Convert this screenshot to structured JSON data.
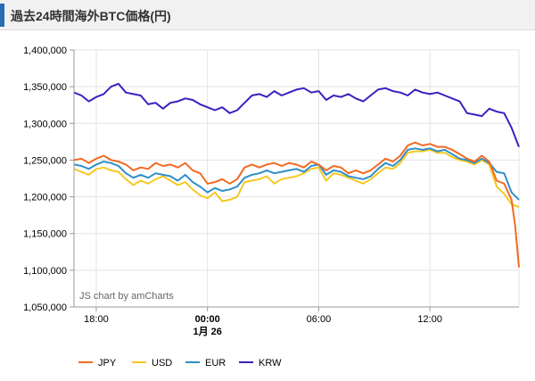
{
  "header": {
    "title": "過去24時間海外BTC価格(円)"
  },
  "credit": "JS chart by amCharts",
  "colors": {
    "JPY": "#f26a21",
    "USD": "#f5c823",
    "EUR": "#2e8fc7",
    "KRW": "#3b1fbf",
    "grid": "#e3e3e3",
    "axis": "#000000"
  },
  "chart_data": {
    "type": "line",
    "title": "過去24時間海外BTC価格(円)",
    "xlabel": "",
    "ylabel": "",
    "ylim": [
      1050000,
      1400000
    ],
    "y_ticks": [
      1050000,
      1100000,
      1150000,
      1200000,
      1250000,
      1300000,
      1350000,
      1400000
    ],
    "y_tick_labels": [
      "1,050,000",
      "1,100,000",
      "1,150,000",
      "1,200,000",
      "1,250,000",
      "1,300,000",
      "1,350,000",
      "1,400,000"
    ],
    "x_range_hours": [
      -7.2,
      16.8
    ],
    "x_ticks": [
      {
        "hour": -6,
        "label": "18:00",
        "sublabel": ""
      },
      {
        "hour": 0,
        "label": "00:00",
        "sublabel": "1月 26",
        "bold": true
      },
      {
        "hour": 6,
        "label": "06:00",
        "sublabel": ""
      },
      {
        "hour": 12,
        "label": "12:00",
        "sublabel": ""
      }
    ],
    "grid": true,
    "legend_position": "bottom-left",
    "series": [
      {
        "name": "JPY",
        "x": [
          -7.2,
          -6.8,
          -6.4,
          -6,
          -5.6,
          -5.2,
          -4.8,
          -4.4,
          -4,
          -3.6,
          -3.2,
          -2.8,
          -2.4,
          -2,
          -1.6,
          -1.2,
          -0.8,
          -0.4,
          0,
          0.4,
          0.8,
          1.2,
          1.6,
          2,
          2.4,
          2.8,
          3.2,
          3.6,
          4,
          4.4,
          4.8,
          5.2,
          5.6,
          6,
          6.4,
          6.8,
          7.2,
          7.6,
          8,
          8.4,
          8.8,
          9.2,
          9.6,
          10,
          10.4,
          10.8,
          11.2,
          11.6,
          12,
          12.4,
          12.8,
          13.2,
          13.6,
          14,
          14.4,
          14.8,
          15.2,
          15.6,
          16,
          16.4,
          16.6,
          16.8
        ],
        "values": [
          1250000,
          1252000,
          1246000,
          1252000,
          1256000,
          1250000,
          1248000,
          1244000,
          1236000,
          1240000,
          1238000,
          1246000,
          1242000,
          1244000,
          1240000,
          1246000,
          1236000,
          1232000,
          1218000,
          1220000,
          1224000,
          1218000,
          1224000,
          1240000,
          1244000,
          1240000,
          1244000,
          1246000,
          1242000,
          1246000,
          1244000,
          1240000,
          1248000,
          1244000,
          1236000,
          1242000,
          1240000,
          1232000,
          1236000,
          1232000,
          1236000,
          1244000,
          1252000,
          1248000,
          1256000,
          1270000,
          1274000,
          1270000,
          1272000,
          1268000,
          1268000,
          1264000,
          1258000,
          1252000,
          1248000,
          1256000,
          1248000,
          1222000,
          1218000,
          1196000,
          1160000,
          1104000
        ]
      },
      {
        "name": "USD",
        "x": [
          -7.2,
          -6.8,
          -6.4,
          -6,
          -5.6,
          -5.2,
          -4.8,
          -4.4,
          -4,
          -3.6,
          -3.2,
          -2.8,
          -2.4,
          -2,
          -1.6,
          -1.2,
          -0.8,
          -0.4,
          0,
          0.4,
          0.8,
          1.2,
          1.6,
          2,
          2.4,
          2.8,
          3.2,
          3.6,
          4,
          4.4,
          4.8,
          5.2,
          5.6,
          6,
          6.4,
          6.8,
          7.2,
          7.6,
          8,
          8.4,
          8.8,
          9.2,
          9.6,
          10,
          10.4,
          10.8,
          11.2,
          11.6,
          12,
          12.4,
          12.8,
          13.2,
          13.6,
          14,
          14.4,
          14.8,
          15.2,
          15.6,
          16,
          16.4,
          16.8
        ],
        "values": [
          1238000,
          1234000,
          1230000,
          1238000,
          1240000,
          1236000,
          1234000,
          1224000,
          1216000,
          1222000,
          1218000,
          1224000,
          1228000,
          1222000,
          1216000,
          1220000,
          1210000,
          1202000,
          1198000,
          1206000,
          1194000,
          1196000,
          1200000,
          1220000,
          1222000,
          1224000,
          1228000,
          1218000,
          1224000,
          1226000,
          1228000,
          1232000,
          1238000,
          1240000,
          1222000,
          1232000,
          1230000,
          1226000,
          1222000,
          1218000,
          1224000,
          1232000,
          1240000,
          1238000,
          1246000,
          1260000,
          1262000,
          1262000,
          1264000,
          1260000,
          1260000,
          1254000,
          1250000,
          1248000,
          1244000,
          1250000,
          1244000,
          1214000,
          1204000,
          1190000,
          1186000
        ]
      },
      {
        "name": "EUR",
        "x": [
          -7.2,
          -6.8,
          -6.4,
          -6,
          -5.6,
          -5.2,
          -4.8,
          -4.4,
          -4,
          -3.6,
          -3.2,
          -2.8,
          -2.4,
          -2,
          -1.6,
          -1.2,
          -0.8,
          -0.4,
          0,
          0.4,
          0.8,
          1.2,
          1.6,
          2,
          2.4,
          2.8,
          3.2,
          3.6,
          4,
          4.4,
          4.8,
          5.2,
          5.6,
          6,
          6.4,
          6.8,
          7.2,
          7.6,
          8,
          8.4,
          8.8,
          9.2,
          9.6,
          10,
          10.4,
          10.8,
          11.2,
          11.6,
          12,
          12.4,
          12.8,
          13.2,
          13.6,
          14,
          14.4,
          14.8,
          15.2,
          15.6,
          16,
          16.4,
          16.8
        ],
        "values": [
          1244000,
          1242000,
          1238000,
          1244000,
          1248000,
          1246000,
          1242000,
          1232000,
          1226000,
          1230000,
          1226000,
          1232000,
          1230000,
          1228000,
          1222000,
          1230000,
          1220000,
          1214000,
          1206000,
          1212000,
          1208000,
          1210000,
          1214000,
          1226000,
          1230000,
          1232000,
          1236000,
          1232000,
          1234000,
          1236000,
          1238000,
          1234000,
          1242000,
          1244000,
          1230000,
          1236000,
          1234000,
          1228000,
          1226000,
          1224000,
          1228000,
          1238000,
          1246000,
          1242000,
          1250000,
          1264000,
          1266000,
          1264000,
          1266000,
          1262000,
          1264000,
          1258000,
          1252000,
          1250000,
          1246000,
          1252000,
          1246000,
          1234000,
          1232000,
          1206000,
          1196000
        ]
      },
      {
        "name": "KRW",
        "x": [
          -7.2,
          -6.8,
          -6.4,
          -6,
          -5.6,
          -5.2,
          -4.8,
          -4.4,
          -4,
          -3.6,
          -3.2,
          -2.8,
          -2.4,
          -2,
          -1.6,
          -1.2,
          -0.8,
          -0.4,
          0,
          0.4,
          0.8,
          1.2,
          1.6,
          2,
          2.4,
          2.8,
          3.2,
          3.6,
          4,
          4.4,
          4.8,
          5.2,
          5.6,
          6,
          6.4,
          6.8,
          7.2,
          7.6,
          8,
          8.4,
          8.8,
          9.2,
          9.6,
          10,
          10.4,
          10.8,
          11.2,
          11.6,
          12,
          12.4,
          12.8,
          13.2,
          13.6,
          14,
          14.4,
          14.8,
          15.2,
          15.6,
          16,
          16.4,
          16.8
        ],
        "values": [
          1342000,
          1338000,
          1330000,
          1336000,
          1340000,
          1350000,
          1354000,
          1342000,
          1340000,
          1338000,
          1326000,
          1328000,
          1320000,
          1328000,
          1330000,
          1334000,
          1332000,
          1326000,
          1322000,
          1318000,
          1322000,
          1314000,
          1318000,
          1328000,
          1338000,
          1340000,
          1336000,
          1344000,
          1338000,
          1342000,
          1346000,
          1348000,
          1342000,
          1344000,
          1332000,
          1338000,
          1336000,
          1340000,
          1334000,
          1330000,
          1338000,
          1346000,
          1348000,
          1344000,
          1342000,
          1338000,
          1346000,
          1342000,
          1340000,
          1342000,
          1338000,
          1334000,
          1330000,
          1314000,
          1312000,
          1310000,
          1320000,
          1316000,
          1314000,
          1294000,
          1268000
        ]
      }
    ]
  }
}
